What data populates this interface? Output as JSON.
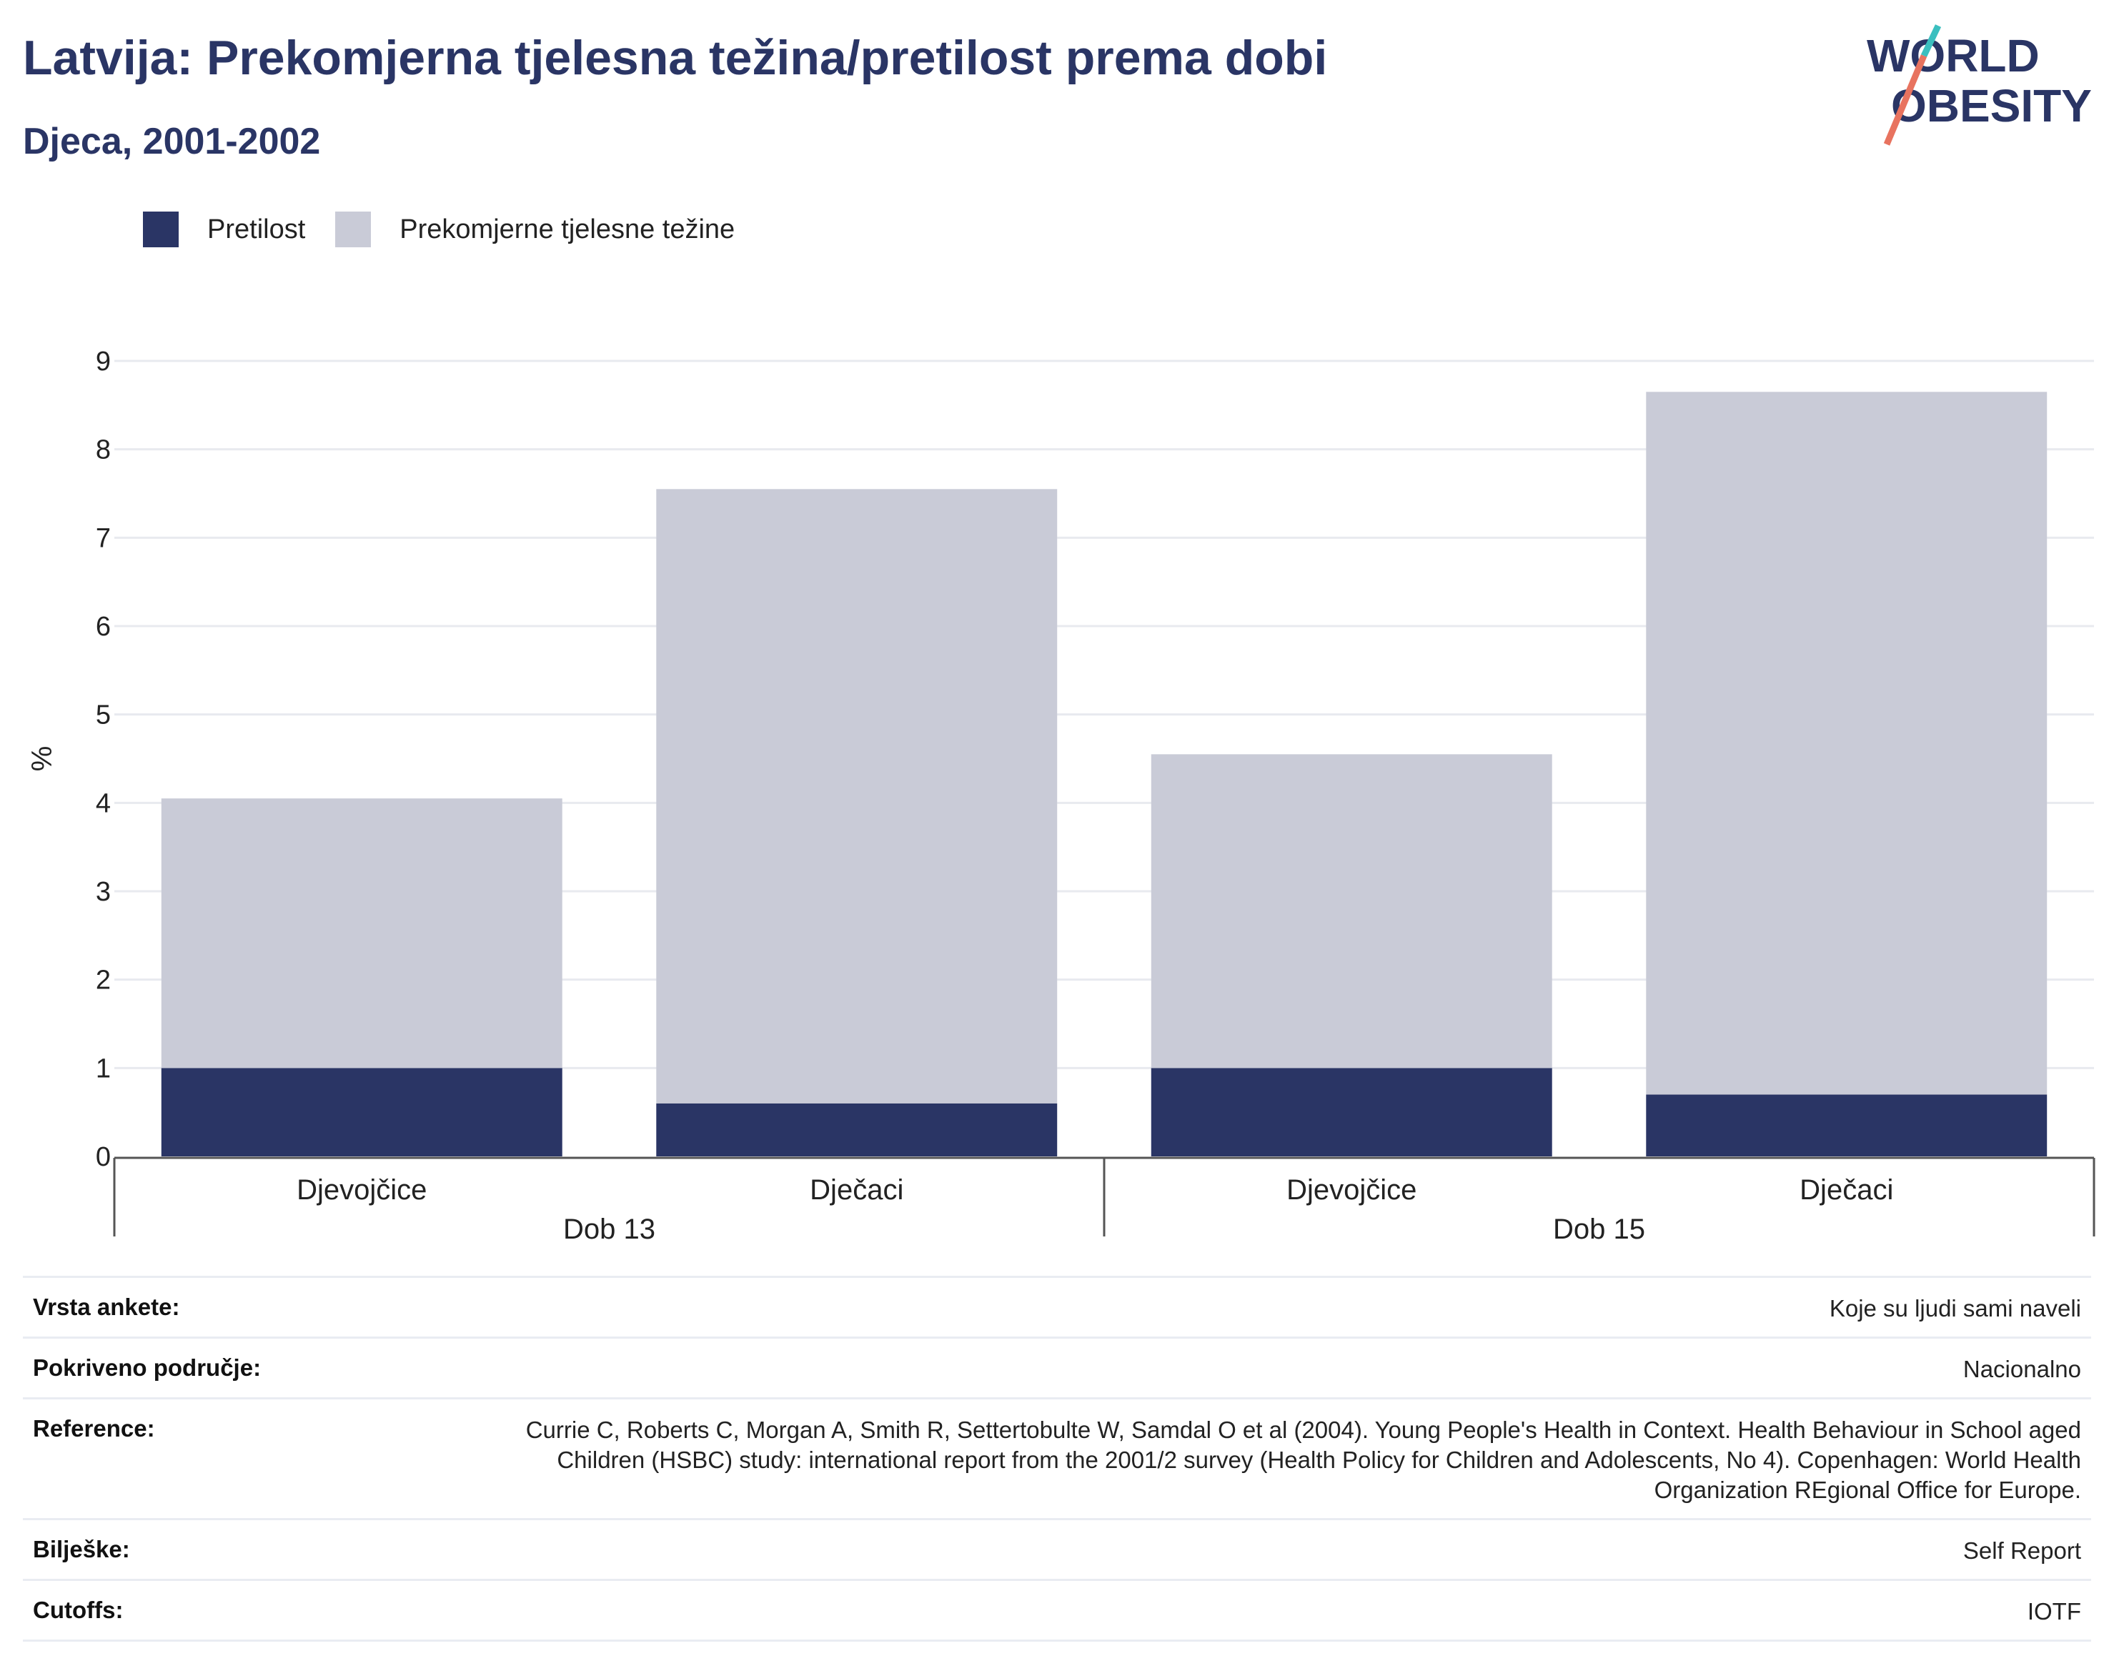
{
  "header": {
    "title": "Latvija: Prekomjerna tjelesna težina/pretilost prema dobi",
    "subtitle": "Djeca, 2001-2002"
  },
  "logo": {
    "line1": "WORLD",
    "line2": "OBESITY",
    "colors": {
      "text": "#2a3565",
      "teal": "#3bbfbf",
      "coral": "#e8735f"
    }
  },
  "legend": [
    {
      "label": "Pretilost",
      "color": "#2a3565"
    },
    {
      "label": "Prekomjerne tjelesne težine",
      "color": "#c9cbd7"
    }
  ],
  "chart_data": {
    "type": "bar",
    "stacked": true,
    "ylabel": "%",
    "ylim": [
      0,
      9
    ],
    "yticks": [
      0,
      1,
      2,
      3,
      4,
      5,
      6,
      7,
      8,
      9
    ],
    "grid": true,
    "legend_position": "top-left",
    "groups": [
      {
        "label": "Dob 13",
        "categories": [
          "Djevojčice",
          "Dječaci"
        ]
      },
      {
        "label": "Dob 15",
        "categories": [
          "Djevojčice",
          "Dječaci"
        ]
      }
    ],
    "categories": [
      "Djevojčice",
      "Dječaci",
      "Djevojčice",
      "Dječaci"
    ],
    "series": [
      {
        "name": "Pretilost",
        "color": "#2a3565",
        "values": [
          1.0,
          0.6,
          1.0,
          0.7
        ]
      },
      {
        "name": "Prekomjerne tjelesne težine",
        "color": "#c9cbd7",
        "values": [
          3.05,
          6.95,
          3.55,
          7.95
        ]
      }
    ]
  },
  "meta": [
    {
      "label": "Vrsta ankete:",
      "value": "Koje su ljudi sami naveli"
    },
    {
      "label": "Pokriveno područje:",
      "value": "Nacionalno"
    },
    {
      "label": "Reference:",
      "value": "Currie C, Roberts C, Morgan A, Smith R, Settertobulte W, Samdal O et al (2004). Young People's Health in Context. Health Behaviour in School aged Children (HSBC) study: international report from the 2001/2 survey (Health Policy for Children and Adolescents, No 4). Copenhagen: World Health Organization REgional Office for Europe."
    },
    {
      "label": "Bilješke:",
      "value": "Self Report"
    },
    {
      "label": "Cutoffs:",
      "value": "IOTF"
    }
  ]
}
